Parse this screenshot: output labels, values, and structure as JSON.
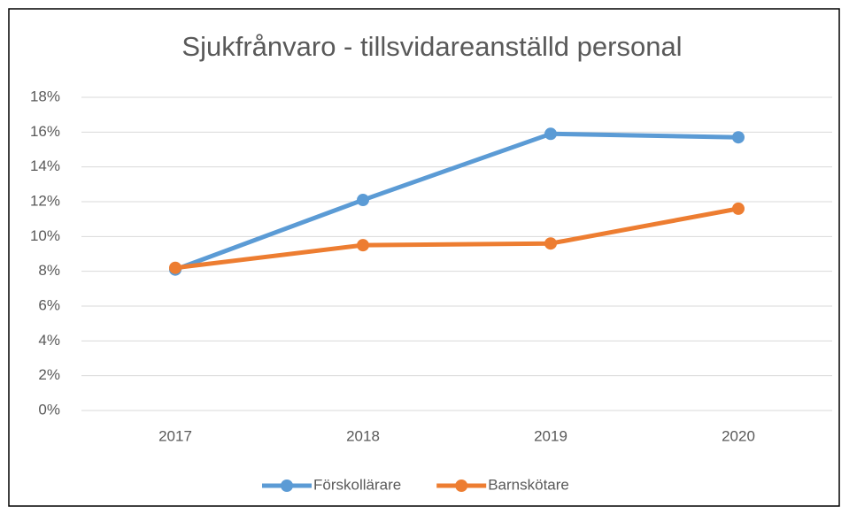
{
  "chart_data": {
    "type": "line",
    "title": "Sjukfrånvaro - tillsvidareanställd personal",
    "categories": [
      "2017",
      "2018",
      "2019",
      "2020"
    ],
    "series": [
      {
        "name": "Förskollärare",
        "color": "#5b9bd5",
        "values": [
          8.1,
          12.1,
          15.9,
          15.7
        ]
      },
      {
        "name": "Barnskötare",
        "color": "#ed7d31",
        "values": [
          8.2,
          9.5,
          9.6,
          11.6
        ]
      }
    ],
    "ylim": [
      0,
      18
    ],
    "yticks": [
      {
        "value": 0,
        "label": "0%"
      },
      {
        "value": 2,
        "label": "2%"
      },
      {
        "value": 4,
        "label": "4%"
      },
      {
        "value": 6,
        "label": "6%"
      },
      {
        "value": 8,
        "label": "8%"
      },
      {
        "value": 10,
        "label": "10%"
      },
      {
        "value": 12,
        "label": "12%"
      },
      {
        "value": 14,
        "label": "14%"
      },
      {
        "value": 16,
        "label": "16%"
      },
      {
        "value": 18,
        "label": "18%"
      }
    ],
    "grid": true,
    "legend": "bottom"
  }
}
